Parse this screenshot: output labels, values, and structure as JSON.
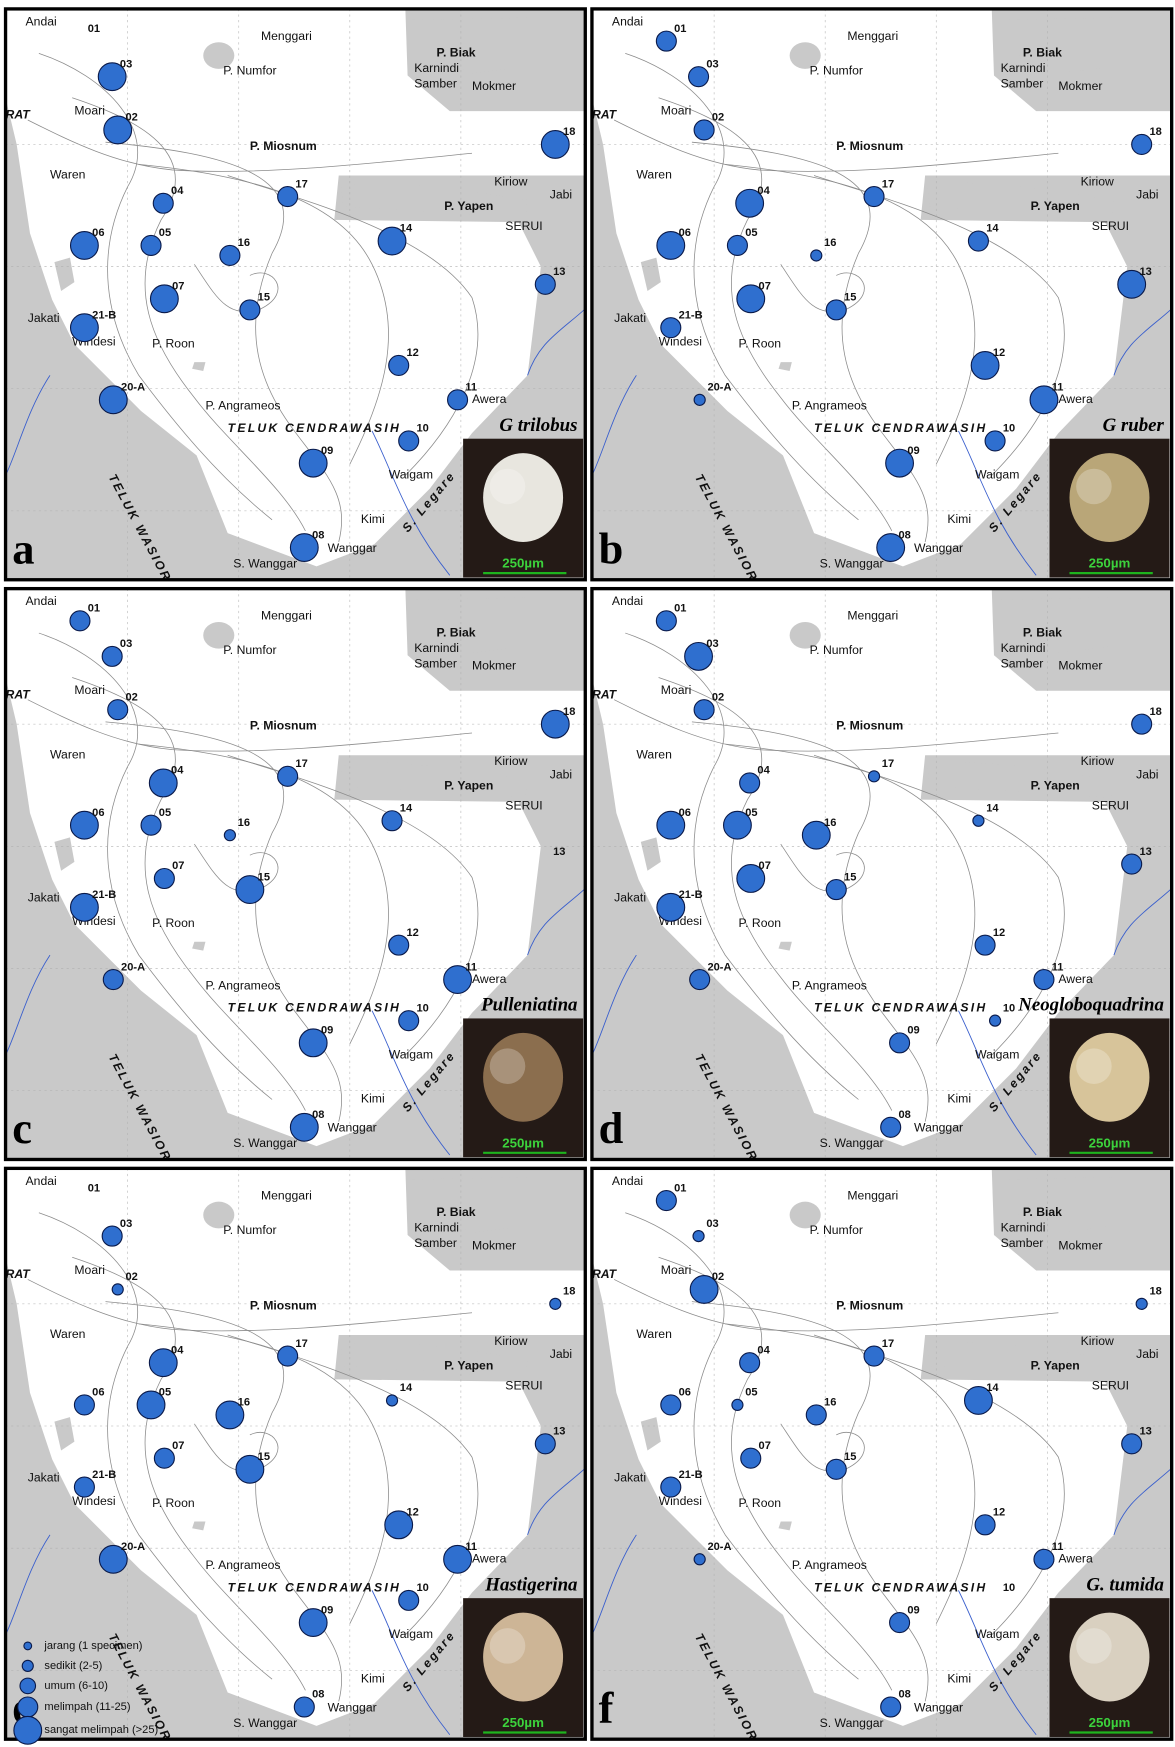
{
  "figure": {
    "scale_label": "250µm",
    "legend": [
      "jarang (1 specimen)",
      "sedikit (2-5)",
      "umum (6-10)",
      "melimpah (11-25)",
      "sangat melimpah (>25)"
    ],
    "stations": [
      "01",
      "03",
      "02",
      "18",
      "04",
      "05",
      "06",
      "16",
      "17",
      "14",
      "13",
      "07",
      "15",
      "21-B",
      "12",
      "11",
      "20-A",
      "10",
      "09",
      "08"
    ],
    "places": [
      "Andai",
      "Menggari",
      "P. Numfor",
      "P. Biak",
      "Karnindi",
      "Samber",
      "Mokmer",
      "RAT",
      "Moari",
      "P. Miosnum",
      "Waren",
      "Kiriow",
      "Jabi",
      "P. Yapen",
      "SERUI",
      "Jakati",
      "Windesi",
      "P. Roon",
      "P. Angrameos",
      "TELUK CENDRAWASIH",
      "TELUK WASIOR",
      "Waigam",
      "Kimi",
      "S. Wanggar",
      "Wanggar",
      "S. Legare",
      "Awera"
    ],
    "panels": [
      {
        "letter": "a",
        "species": "G trilobus",
        "abundance": [
          null,
          "sangat melimpah (>25)",
          "sangat melimpah (>25)",
          "sangat melimpah (>25)",
          "melimpah (11-25)",
          "melimpah (11-25)",
          "sangat melimpah (>25)",
          "melimpah (11-25)",
          "melimpah (11-25)",
          "sangat melimpah (>25)",
          "melimpah (11-25)",
          "sangat melimpah (>25)",
          "melimpah (11-25)",
          "sangat melimpah (>25)",
          "melimpah (11-25)",
          "melimpah (11-25)",
          "sangat melimpah (>25)",
          "melimpah (11-25)",
          "sangat melimpah (>25)",
          "sangat melimpah (>25)"
        ]
      },
      {
        "letter": "b",
        "species": "G ruber",
        "abundance": [
          "melimpah (11-25)",
          "melimpah (11-25)",
          "melimpah (11-25)",
          "melimpah (11-25)",
          "sangat melimpah (>25)",
          "melimpah (11-25)",
          "sangat melimpah (>25)",
          "sedikit (2-5)",
          "melimpah (11-25)",
          "melimpah (11-25)",
          "sangat melimpah (>25)",
          "sangat melimpah (>25)",
          "melimpah (11-25)",
          "melimpah (11-25)",
          "sangat melimpah (>25)",
          "sangat melimpah (>25)",
          "sedikit (2-5)",
          "melimpah (11-25)",
          "sangat melimpah (>25)",
          "sangat melimpah (>25)"
        ]
      },
      {
        "letter": "c",
        "species": "Pulleniatina",
        "abundance": [
          "melimpah (11-25)",
          "melimpah (11-25)",
          "melimpah (11-25)",
          "sangat melimpah (>25)",
          "sangat melimpah (>25)",
          "melimpah (11-25)",
          "sangat melimpah (>25)",
          "sedikit (2-5)",
          "melimpah (11-25)",
          "melimpah (11-25)",
          null,
          "melimpah (11-25)",
          "sangat melimpah (>25)",
          "sangat melimpah (>25)",
          "melimpah (11-25)",
          "sangat melimpah (>25)",
          "melimpah (11-25)",
          "melimpah (11-25)",
          "sangat melimpah (>25)",
          "sangat melimpah (>25)"
        ]
      },
      {
        "letter": "d",
        "species": "Neogloboquadrina",
        "abundance": [
          "melimpah (11-25)",
          "sangat melimpah (>25)",
          "melimpah (11-25)",
          "melimpah (11-25)",
          "melimpah (11-25)",
          "sangat melimpah (>25)",
          "sangat melimpah (>25)",
          "sangat melimpah (>25)",
          "sedikit (2-5)",
          "sedikit (2-5)",
          "melimpah (11-25)",
          "sangat melimpah (>25)",
          "melimpah (11-25)",
          "sangat melimpah (>25)",
          "melimpah (11-25)",
          "melimpah (11-25)",
          "melimpah (11-25)",
          "sedikit (2-5)",
          "melimpah (11-25)",
          "melimpah (11-25)"
        ]
      },
      {
        "letter": "e",
        "species": "Hastigerina",
        "abundance": [
          null,
          "melimpah (11-25)",
          "sedikit (2-5)",
          "sedikit (2-5)",
          "sangat melimpah (>25)",
          "sangat melimpah (>25)",
          "melimpah (11-25)",
          "sangat melimpah (>25)",
          "melimpah (11-25)",
          "sedikit (2-5)",
          "melimpah (11-25)",
          "melimpah (11-25)",
          "sangat melimpah (>25)",
          "melimpah (11-25)",
          "sangat melimpah (>25)",
          "sangat melimpah (>25)",
          "sangat melimpah (>25)",
          "melimpah (11-25)",
          "sangat melimpah (>25)",
          "melimpah (11-25)"
        ]
      },
      {
        "letter": "f",
        "species": "G. tumida",
        "abundance": [
          "melimpah (11-25)",
          "sedikit (2-5)",
          "sangat melimpah (>25)",
          "sedikit (2-5)",
          "melimpah (11-25)",
          "sedikit (2-5)",
          "melimpah (11-25)",
          "melimpah (11-25)",
          "melimpah (11-25)",
          "sangat melimpah (>25)",
          "melimpah (11-25)",
          "melimpah (11-25)",
          "melimpah (11-25)",
          "melimpah (11-25)",
          "melimpah (11-25)",
          "melimpah (11-25)",
          "sedikit (2-5)",
          null,
          "melimpah (11-25)",
          "melimpah (11-25)"
        ]
      }
    ]
  }
}
